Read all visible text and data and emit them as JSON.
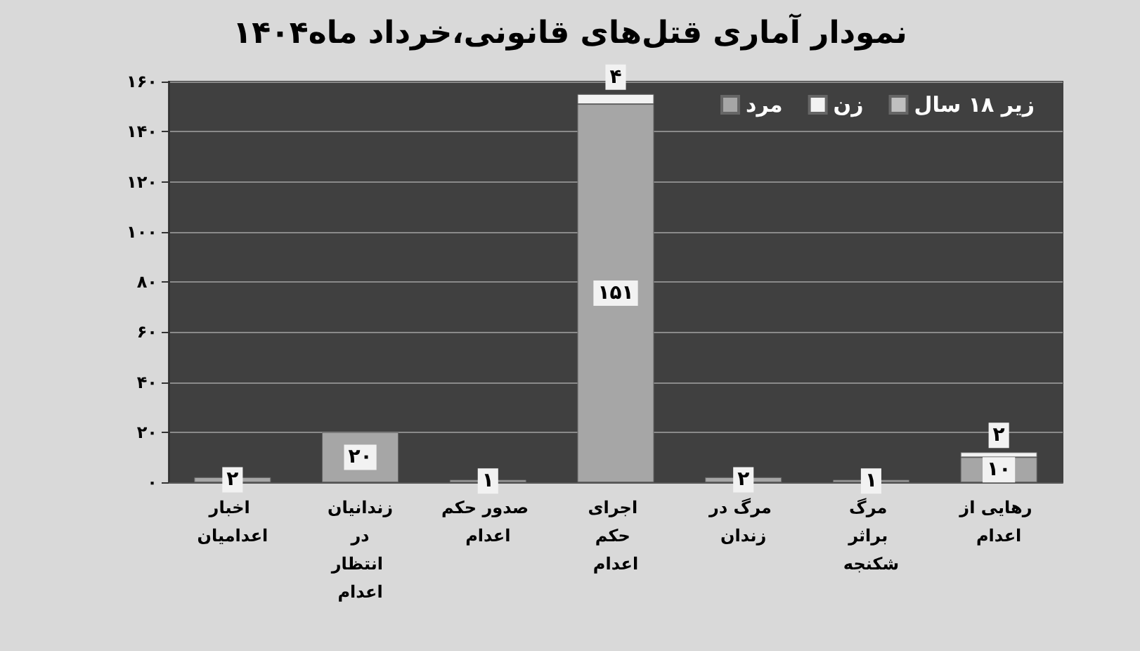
{
  "chart_data": {
    "type": "bar",
    "title": "نمودار آماری قتل‌های قانونی،خرداد ماه۱۴۰۴",
    "categories": [
      "اخبار اعدامیان",
      "زندانیان در انتظار اعدام",
      "صدور حکم اعدام",
      "اجرای حکم اعدام",
      "مرگ در زندان",
      "مرگ براثر شکنجه",
      "رهایی از اعدام"
    ],
    "stacked": true,
    "series": [
      {
        "name": "مرد",
        "color": "#a6a6a6",
        "values": [
          2,
          20,
          1,
          151,
          2,
          1,
          10
        ],
        "value_labels": [
          "۲",
          "۲۰",
          "۱",
          "۱۵۱",
          "۲",
          "۱",
          "۱۰"
        ]
      },
      {
        "name": "زن",
        "color": "#f2f2f2",
        "values": [
          null,
          null,
          null,
          4,
          null,
          null,
          2
        ],
        "value_labels": [
          null,
          null,
          null,
          "۴",
          null,
          null,
          "۲"
        ]
      },
      {
        "name": "زیر ۱۸ سال",
        "color": "#bfbfbf",
        "values": [
          null,
          null,
          null,
          null,
          null,
          null,
          null
        ]
      }
    ],
    "ylim": [
      0,
      160
    ],
    "yticks": [
      {
        "value": 0,
        "label": "۰"
      },
      {
        "value": 20,
        "label": "۲۰"
      },
      {
        "value": 40,
        "label": "۴۰"
      },
      {
        "value": 60,
        "label": "۶۰"
      },
      {
        "value": 80,
        "label": "۸۰"
      },
      {
        "value": 100,
        "label": "۱۰۰"
      },
      {
        "value": 120,
        "label": "۱۲۰"
      },
      {
        "value": 140,
        "label": "۱۴۰"
      },
      {
        "value": 160,
        "label": "۱۶۰"
      }
    ],
    "grid": "y",
    "legend": "top right"
  }
}
